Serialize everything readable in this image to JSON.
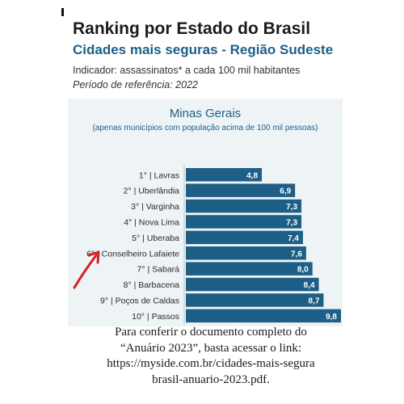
{
  "header": {
    "title": "Ranking por Estado do Brasil",
    "subtitle": "Cidades mais seguras - Região Sudeste",
    "indicator": "Indicador: assassinatos* a cada 100 mil habitantes",
    "period": "Período de referência: 2022"
  },
  "chart_data": {
    "type": "bar",
    "orientation": "horizontal",
    "title": "Minas Gerais",
    "subtitle": "(apenas municípios com população acima de 100 mil pessoas)",
    "categories": [
      "1° | Lavras",
      "2° | Uberlândia",
      "3° | Varginha",
      "4° | Nova Lima",
      "5° | Uberaba",
      "6° | Conselheiro Lafaiete",
      "7° | Sabará",
      "8° | Barbacena",
      "9° | Poços de Caldas",
      "10° | Passos"
    ],
    "values": [
      4.8,
      6.9,
      7.3,
      7.3,
      7.4,
      7.6,
      8.0,
      8.4,
      8.7,
      9.8
    ],
    "value_labels": [
      "4,8",
      "6,9",
      "7,3",
      "7,3",
      "7,4",
      "7,6",
      "8,0",
      "8,4",
      "8,7",
      "9,8"
    ],
    "highlighted_category": "6° | Conselheiro Lafaiete",
    "bar_color": "#1d5f86",
    "annotation_color": "#d42020"
  },
  "caption": {
    "lines": [
      "Para conferir o documento completo do",
      "“Anuário 2023”, basta acessar o link:",
      "https://myside.com.br/cidades-mais-segura",
      "brasil-anuario-2023.pdf."
    ]
  }
}
